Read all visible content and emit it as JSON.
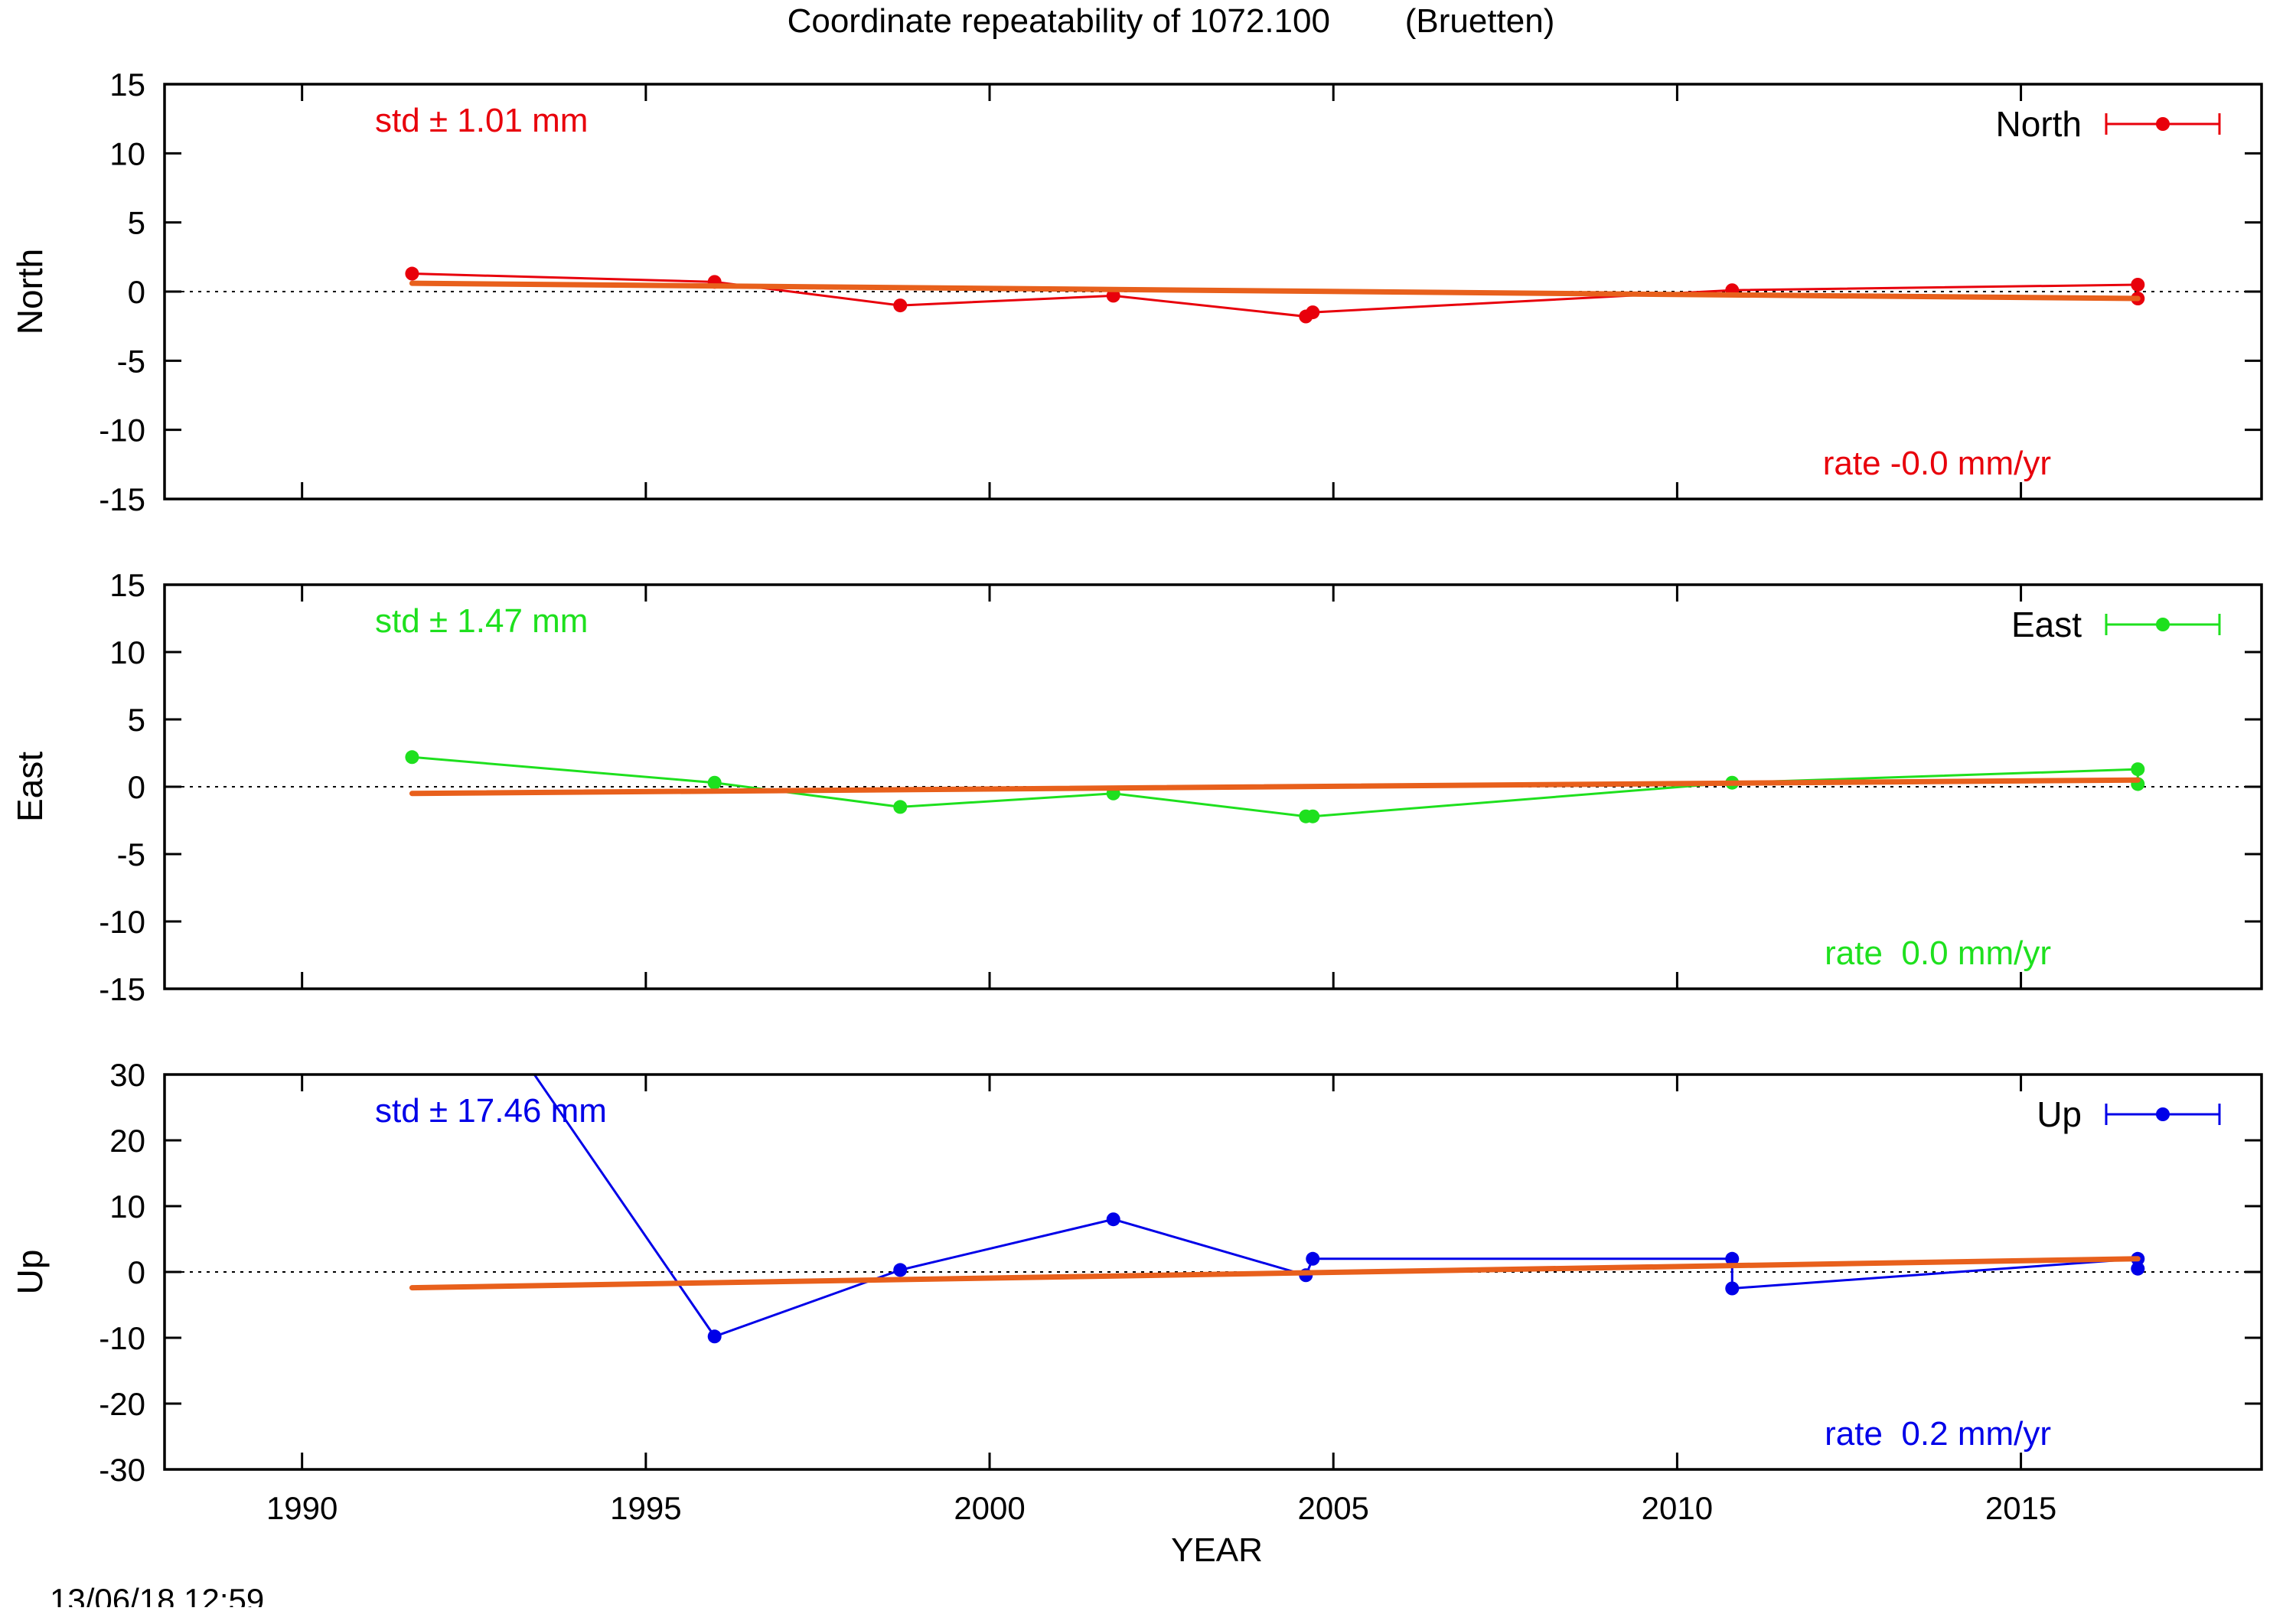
{
  "title": "Coordinate repeatability of 1072.100        (Bruetten)",
  "xlabel": "YEAR",
  "timestamp": "13/06/18 12:59",
  "colors": {
    "trend": "#e8601c",
    "north": "#e8000b",
    "east": "#1ee01e",
    "up": "#0000e8"
  },
  "chart_data": [
    {
      "type": "line",
      "name": "North",
      "ylabel": "North",
      "legend": "North",
      "std_text": "std ± 1.01 mm",
      "rate_text": "rate -0.0 mm/yr",
      "color": "#e8000b",
      "xlim": [
        1988,
        2018.5
      ],
      "ylim": [
        -15,
        15
      ],
      "yticks": [
        15,
        10,
        5,
        0,
        -5,
        -10,
        -15
      ],
      "x": [
        1991.6,
        1996.0,
        1998.7,
        2001.8,
        2004.6,
        2004.7,
        2010.8,
        2016.7,
        2016.7
      ],
      "y": [
        1.3,
        0.7,
        -1.0,
        -0.3,
        -1.8,
        -1.5,
        0.1,
        0.5,
        -0.5
      ],
      "trend": {
        "x": [
          1991.6,
          2016.7
        ],
        "y": [
          0.6,
          -0.5
        ]
      }
    },
    {
      "type": "line",
      "name": "East",
      "ylabel": "East",
      "legend": "East",
      "std_text": "std ± 1.47 mm",
      "rate_text": "rate  0.0 mm/yr",
      "color": "#1ee01e",
      "xlim": [
        1988,
        2018.5
      ],
      "ylim": [
        -15,
        15
      ],
      "yticks": [
        15,
        10,
        5,
        0,
        -5,
        -10,
        -15
      ],
      "x": [
        1991.6,
        1996.0,
        1998.7,
        2001.8,
        2004.6,
        2004.7,
        2010.8,
        2016.7,
        2016.7
      ],
      "y": [
        2.2,
        0.3,
        -1.5,
        -0.5,
        -2.2,
        -2.2,
        0.3,
        1.3,
        0.2
      ],
      "trend": {
        "x": [
          1991.6,
          2016.7
        ],
        "y": [
          -0.5,
          0.5
        ]
      }
    },
    {
      "type": "line",
      "name": "Up",
      "ylabel": "Up",
      "legend": "Up",
      "std_text": "std ± 17.46 mm",
      "rate_text": "rate  0.2 mm/yr",
      "color": "#0000e8",
      "xlim": [
        1988,
        2018.5
      ],
      "ylim": [
        -30,
        30
      ],
      "yticks": [
        30,
        20,
        10,
        0,
        -10,
        -20,
        -30
      ],
      "x": [
        1991.6,
        1996.0,
        1998.7,
        2001.8,
        2004.6,
        2004.7,
        2010.8,
        2010.8,
        2016.7,
        2016.7
      ],
      "y": [
        57,
        -9.8,
        0.3,
        8.0,
        -0.5,
        2.0,
        2.0,
        -2.5,
        2.0,
        0.5
      ],
      "trend": {
        "x": [
          1991.6,
          2016.7
        ],
        "y": [
          -2.4,
          2.0
        ]
      }
    }
  ],
  "xticks": [
    1990,
    1995,
    2000,
    2005,
    2010,
    2015
  ]
}
